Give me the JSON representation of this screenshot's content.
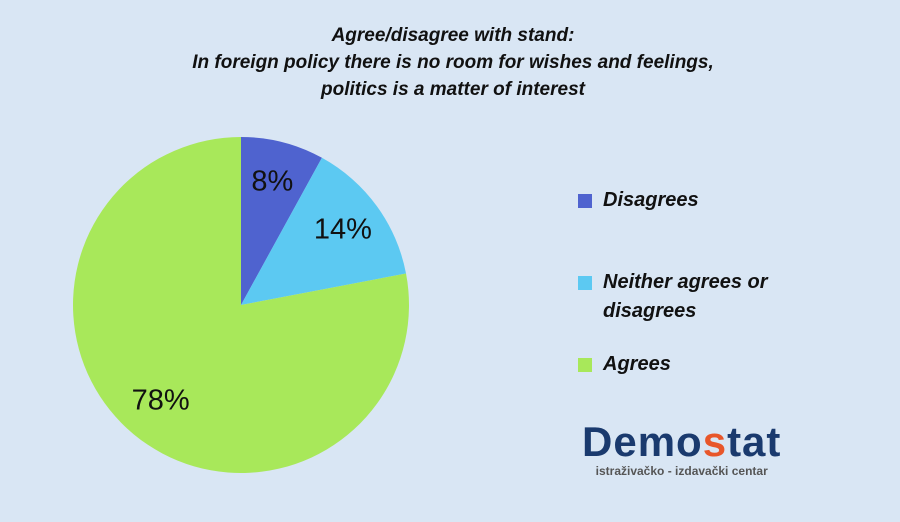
{
  "chart_data": {
    "type": "pie",
    "title": [
      "Agree/disagree with stand:",
      "In foreign policy there is no room for wishes and feelings,",
      "politics is a matter of interest"
    ],
    "categories": [
      "Disagrees",
      "Neither agrees or disagrees",
      "Agrees"
    ],
    "values": [
      8,
      14,
      78
    ],
    "value_labels": [
      "8%",
      "14%",
      "78%"
    ],
    "colors": [
      "#4f63cf",
      "#5cc9f2",
      "#a8e85a"
    ]
  },
  "logo": {
    "name_parts": [
      "Demo",
      "s",
      "tat"
    ],
    "tagline": "istraživačko - izdavački  centar"
  }
}
